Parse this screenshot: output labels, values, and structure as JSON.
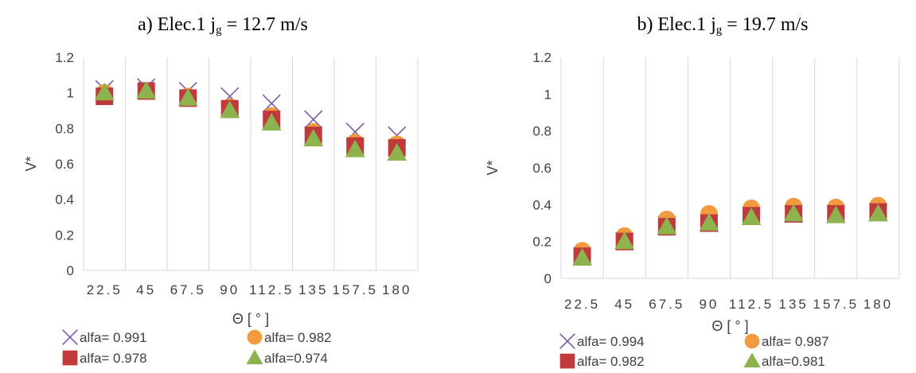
{
  "chart_data": [
    {
      "type": "scatter",
      "title_prefix": "a)   Elec.1 j",
      "title_sub": "g",
      "title_suffix": " = 12.7 m/s",
      "xlabel": "Θ [ ° ]",
      "ylabel": "V*",
      "categories": [
        "22.5",
        "45",
        "67.5",
        "90",
        "112.5",
        "135",
        "157.5",
        "180"
      ],
      "yticks": [
        "0",
        "0.2",
        "0.4",
        "0.6",
        "0.8",
        "1",
        "1.2"
      ],
      "ylim": [
        0,
        1.2
      ],
      "grid": "vertical",
      "legend_position": "bottom",
      "series": [
        {
          "name": "alfa= 0.991",
          "marker": "x",
          "color": "#7B5BA6",
          "values": [
            1.02,
            1.03,
            1.01,
            0.98,
            0.94,
            0.85,
            0.78,
            0.76
          ]
        },
        {
          "name": "alfa= 0.982",
          "marker": "circle",
          "color": "#F29A3F",
          "values": [
            1.0,
            1.01,
            0.98,
            0.92,
            0.87,
            0.78,
            0.72,
            0.71
          ]
        },
        {
          "name": "alfa= 0.978",
          "marker": "square",
          "color": "#C0393B",
          "values": [
            0.98,
            1.01,
            0.97,
            0.91,
            0.85,
            0.76,
            0.7,
            0.69
          ]
        },
        {
          "name": "alfa=0.974",
          "marker": "triangle",
          "color": "#8DB24E",
          "values": [
            1.0,
            1.01,
            0.97,
            0.9,
            0.83,
            0.74,
            0.68,
            0.66
          ]
        }
      ]
    },
    {
      "type": "scatter",
      "title_prefix": "b)   Elec.1 j",
      "title_sub": "g",
      "title_suffix": " = 19.7 m/s",
      "xlabel": "Θ [ ° ]",
      "ylabel": "V*",
      "categories": [
        "22.5",
        "45",
        "67.5",
        "90",
        "112.5",
        "135",
        "157.5",
        "180"
      ],
      "yticks": [
        "0",
        "0.2",
        "0.4",
        "0.6",
        "0.8",
        "1",
        "1.2"
      ],
      "ylim": [
        0,
        1.2
      ],
      "grid": "vertical",
      "legend_position": "bottom",
      "series": [
        {
          "name": "alfa= 0.994",
          "marker": "x",
          "color": "#7B5BA6",
          "values": [
            0.12,
            0.2,
            0.29,
            0.3,
            0.34,
            0.35,
            0.35,
            0.36
          ]
        },
        {
          "name": "alfa= 0.987",
          "marker": "circle",
          "color": "#F29A3F",
          "values": [
            0.15,
            0.23,
            0.32,
            0.35,
            0.38,
            0.39,
            0.385,
            0.395
          ]
        },
        {
          "name": "alfa= 0.982",
          "marker": "square",
          "color": "#C0393B",
          "values": [
            0.12,
            0.2,
            0.28,
            0.3,
            0.34,
            0.35,
            0.35,
            0.36
          ]
        },
        {
          "name": "alfa=0.981",
          "marker": "triangle",
          "color": "#8DB24E",
          "values": [
            0.11,
            0.2,
            0.28,
            0.3,
            0.33,
            0.35,
            0.34,
            0.35
          ]
        }
      ]
    }
  ]
}
